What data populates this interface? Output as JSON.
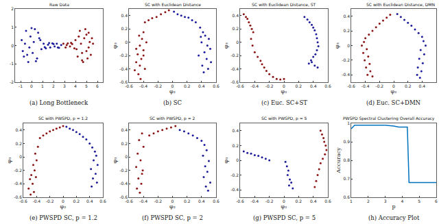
{
  "chart_data": [
    {
      "type": "scatter",
      "title": "Raw Data",
      "caption": "(a) Long Bottleneck",
      "grid": false,
      "xlim": [
        -1.5,
        6.5
      ],
      "ylim": [
        -2,
        2
      ],
      "xticks": [
        -1,
        0,
        1,
        2,
        3,
        4,
        5,
        6
      ],
      "yticks": [
        -2,
        -1,
        0,
        1,
        2
      ],
      "series": [
        {
          "color": "#1c1c9c",
          "x": [
            -0.9,
            -0.7,
            -0.5,
            -0.3,
            -0.1,
            0.1,
            0.3,
            0.5,
            0.7,
            0.9,
            -0.6,
            -0.2,
            0.2,
            0.6,
            -0.8,
            0,
            0.4,
            0.8,
            -0.4,
            1.1,
            1.3,
            1.5,
            1.7,
            1.9,
            2.1,
            2.3,
            2.5,
            2.7,
            1.2,
            1.6,
            2.0,
            2.4
          ],
          "y": [
            0.3,
            -0.6,
            0.8,
            -0.9,
            0.5,
            -0.4,
            0.9,
            -0.7,
            0.4,
            -0.2,
            0.1,
            -0.1,
            0.2,
            0.7,
            -0.3,
            0.95,
            -0.85,
            0.3,
            -0.5,
            0.1,
            -0.15,
            0.05,
            -0.1,
            0.12,
            -0.05,
            0.1,
            -0.12,
            0.03,
            -0.08,
            0.14,
            0.08,
            -0.1
          ]
        },
        {
          "color": "#8c1414",
          "x": [
            2.9,
            3.1,
            3.3,
            3.5,
            3.7,
            3.9,
            3.2,
            3.6,
            4.0,
            4.2,
            4.4,
            4.6,
            4.8,
            5.0,
            5.2,
            5.4,
            5.6,
            4.3,
            4.7,
            5.1,
            5.5,
            4.5,
            4.9,
            5.3,
            4.1,
            5.0,
            4.6,
            5.2
          ],
          "y": [
            0.1,
            -0.1,
            0.12,
            -0.05,
            0.08,
            -0.15,
            0.03,
            0.15,
            0.3,
            -0.6,
            0.8,
            -0.8,
            0.4,
            -0.3,
            0.7,
            -0.5,
            0.1,
            0.5,
            -0.9,
            -0.7,
            0.4,
            0.1,
            0.9,
            0.2,
            -0.2,
            0.6,
            -0.4,
            -0.1
          ]
        }
      ]
    },
    {
      "type": "scatter",
      "title": "SC with Euclidean Distance",
      "caption": "(b) SC",
      "x_label": "φ₂",
      "y_label": "φ₃",
      "grid": false,
      "xlim": [
        -0.6,
        0.6
      ],
      "ylim": [
        -0.6,
        0.5
      ],
      "xticks": [
        -0.6,
        -0.4,
        -0.2,
        0,
        0.2,
        0.4,
        0.6
      ],
      "yticks": [
        -0.6,
        -0.4,
        -0.2,
        0,
        0.2,
        0.4
      ],
      "series": [
        {
          "color": "#8c1414",
          "x": [
            -0.38,
            -0.33,
            -0.28,
            -0.22,
            -0.16,
            -0.1,
            -0.05,
            -0.4,
            -0.42,
            -0.36,
            -0.45,
            -0.4,
            -0.48,
            -0.43,
            -0.5,
            -0.45,
            -0.52,
            -0.4,
            -0.47,
            -0.44,
            -0.38,
            -0.5,
            -0.46
          ],
          "y": [
            0.3,
            0.33,
            0.36,
            0.38,
            0.42,
            0.45,
            0.48,
            0.15,
            0.05,
            0.0,
            -0.05,
            -0.12,
            -0.18,
            -0.25,
            -0.3,
            -0.35,
            -0.42,
            -0.2,
            -0.48,
            -0.55,
            -0.4,
            -0.1,
            0.1
          ]
        },
        {
          "color": "#1c1c9c",
          "x": [
            0.02,
            0.07,
            0.12,
            0.17,
            0.22,
            0.27,
            0.32,
            0.38,
            0.42,
            0.45,
            0.5,
            0.4,
            0.48,
            0.52,
            0.44,
            0.36,
            0.47,
            0.53,
            0.41,
            0.49,
            0.43,
            0.39
          ],
          "y": [
            0.46,
            0.42,
            0.4,
            0.38,
            0.37,
            0.33,
            0.3,
            0.22,
            0.15,
            0.1,
            0.05,
            0.0,
            -0.05,
            -0.1,
            -0.15,
            -0.2,
            -0.25,
            -0.3,
            -0.35,
            -0.4,
            -0.45,
            0.08
          ]
        }
      ]
    },
    {
      "type": "scatter",
      "title": "SC with Euclidean Distance, ST",
      "caption": "(c) Euc. SC+ST",
      "x_label": "φ₂",
      "y_label": "φ₃",
      "grid": false,
      "xlim": [
        -0.6,
        0.6
      ],
      "ylim": [
        -0.6,
        0.5
      ],
      "xticks": [
        -0.6,
        -0.4,
        -0.2,
        0,
        0.2,
        0.4,
        0.6
      ],
      "yticks": [
        -0.6,
        -0.4,
        -0.2,
        0,
        0.2,
        0.4
      ],
      "series": [
        {
          "color": "#8c1414",
          "x": [
            -0.55,
            -0.52,
            -0.5,
            -0.48,
            -0.46,
            -0.44,
            -0.42,
            -0.45,
            -0.43,
            -0.4,
            -0.36,
            -0.32,
            -0.3,
            -0.27,
            -0.24,
            -0.2,
            -0.15,
            -0.1,
            -0.05,
            0.0
          ],
          "y": [
            0.42,
            0.38,
            0.35,
            0.3,
            0.25,
            0.2,
            0.15,
            0.05,
            -0.05,
            -0.15,
            -0.22,
            -0.28,
            -0.33,
            -0.38,
            -0.43,
            -0.48,
            -0.52,
            -0.55,
            -0.56,
            -0.55
          ]
        },
        {
          "color": "#1c1c9c",
          "x": [
            0.28,
            0.32,
            0.35,
            0.38,
            0.4,
            0.42,
            0.44,
            0.45,
            0.46,
            0.47,
            0.45,
            0.43,
            0.4,
            0.37,
            0.34,
            0.38,
            0.42,
            0.46
          ],
          "y": [
            0.38,
            0.34,
            0.3,
            0.26,
            0.22,
            0.18,
            0.12,
            0.06,
            0.0,
            -0.06,
            -0.12,
            -0.18,
            -0.22,
            -0.27,
            -0.32,
            -0.3,
            -0.35,
            -0.38
          ]
        }
      ]
    },
    {
      "type": "scatter",
      "title": "SC with Euclidean Distance, DMN",
      "caption": "(d) Euc. SC+DMN",
      "x_label": "φ₂",
      "y_label": "φ₃",
      "grid": false,
      "xlim": [
        -0.6,
        0.6
      ],
      "ylim": [
        -0.5,
        0.5
      ],
      "xticks": [
        -0.6,
        -0.4,
        -0.2,
        0,
        0.2,
        0.4,
        0.6
      ],
      "yticks": [
        -0.4,
        -0.2,
        0,
        0.2,
        0.4
      ],
      "series": [
        {
          "color": "#8c1414",
          "x": [
            -0.05,
            -0.1,
            -0.15,
            -0.2,
            -0.25,
            -0.3,
            -0.35,
            -0.4,
            -0.42,
            -0.45,
            -0.38,
            -0.43,
            -0.36,
            -0.41,
            -0.34,
            -0.39,
            -0.33,
            -0.37,
            -0.3
          ],
          "y": [
            0.42,
            0.38,
            0.34,
            0.3,
            0.25,
            0.2,
            0.15,
            0.1,
            0.05,
            0.0,
            -0.05,
            -0.1,
            -0.15,
            -0.2,
            -0.25,
            -0.3,
            -0.35,
            -0.4,
            -0.42
          ]
        },
        {
          "color": "#1c1c9c",
          "x": [
            0.05,
            0.1,
            0.15,
            0.2,
            0.25,
            0.3,
            0.35,
            0.4,
            0.42,
            0.45,
            0.38,
            0.43,
            0.36,
            0.41,
            0.34,
            0.39,
            0.33,
            0.37
          ],
          "y": [
            0.43,
            0.39,
            0.35,
            0.31,
            0.27,
            0.22,
            0.17,
            0.12,
            0.06,
            0.0,
            -0.06,
            -0.12,
            -0.18,
            -0.24,
            -0.3,
            -0.35,
            -0.4,
            -0.44
          ]
        }
      ]
    },
    {
      "type": "scatter",
      "title": "SC with PWSPD, p = 1.2",
      "caption": "(e) PWSPD SC, p = 1.2",
      "x_label": "φ₂",
      "y_label": "φ₃",
      "grid": false,
      "xlim": [
        -0.6,
        0.6
      ],
      "ylim": [
        -0.6,
        0.5
      ],
      "xticks": [
        -0.6,
        -0.4,
        -0.2,
        0,
        0.2,
        0.4,
        0.6
      ],
      "yticks": [
        -0.6,
        -0.4,
        -0.2,
        0,
        0.2,
        0.4
      ],
      "series": [
        {
          "color": "#8c1414",
          "x": [
            -0.35,
            -0.3,
            -0.25,
            -0.2,
            -0.15,
            -0.1,
            -0.05,
            0.0,
            -0.38,
            -0.42,
            -0.4,
            -0.45,
            -0.43,
            -0.48,
            -0.5,
            -0.46,
            -0.52,
            -0.44,
            -0.49,
            -0.41
          ],
          "y": [
            0.28,
            0.32,
            0.35,
            0.38,
            0.4,
            0.42,
            0.44,
            0.46,
            0.15,
            0.05,
            -0.05,
            -0.12,
            -0.2,
            -0.27,
            -0.33,
            -0.4,
            -0.47,
            -0.52,
            -0.56,
            -0.3
          ]
        },
        {
          "color": "#1c1c9c",
          "x": [
            0.05,
            0.1,
            0.15,
            0.2,
            0.25,
            0.3,
            0.35,
            0.4,
            0.44,
            0.48,
            0.5,
            0.46,
            0.52,
            0.42,
            0.49,
            0.45,
            0.51,
            0.43
          ],
          "y": [
            0.45,
            0.42,
            0.4,
            0.37,
            0.34,
            0.3,
            0.26,
            0.2,
            0.14,
            0.08,
            0.02,
            -0.05,
            -0.12,
            -0.18,
            -0.25,
            -0.32,
            -0.38,
            -0.44
          ]
        }
      ]
    },
    {
      "type": "scatter",
      "title": "SC with PWSPD, p = 2",
      "caption": "(f) PWSPD SC, p = 2",
      "x_label": "φ₂",
      "y_label": "φ₃",
      "grid": false,
      "xlim": [
        -0.6,
        0.6
      ],
      "ylim": [
        -0.6,
        0.5
      ],
      "xticks": [
        -0.6,
        -0.4,
        -0.2,
        0,
        0.2,
        0.4,
        0.6
      ],
      "yticks": [
        -0.6,
        -0.4,
        -0.2,
        0,
        0.2,
        0.4
      ],
      "series": [
        {
          "color": "#8c1414",
          "x": [
            -0.32,
            -0.26,
            -0.2,
            -0.14,
            -0.08,
            -0.02,
            0.04,
            -0.42,
            -0.46,
            -0.4,
            -0.48,
            -0.44,
            -0.5,
            -0.42,
            -0.47,
            -0.43,
            -0.49,
            -0.45,
            -0.41
          ],
          "y": [
            0.32,
            0.35,
            0.38,
            0.4,
            0.42,
            0.44,
            0.46,
            0.35,
            0.25,
            0.15,
            0.05,
            -0.05,
            -0.15,
            -0.25,
            -0.32,
            -0.4,
            -0.47,
            -0.53,
            -0.2
          ]
        },
        {
          "color": "#1c1c9c",
          "x": [
            0.1,
            0.16,
            0.22,
            0.28,
            0.34,
            0.4,
            0.44,
            0.47,
            0.42,
            0.5,
            0.45,
            0.48,
            0.43,
            0.52,
            0.46,
            0.49
          ],
          "y": [
            0.4,
            0.38,
            0.35,
            0.32,
            0.28,
            0.24,
            0.18,
            0.1,
            0.02,
            -0.06,
            -0.14,
            -0.22,
            -0.3,
            -0.38,
            -0.44,
            -0.5
          ]
        }
      ]
    },
    {
      "type": "scatter",
      "title": "SC with PWSPD, p = 5",
      "caption": "(g) PWSPD SC, p = 5",
      "x_label": "φ₂",
      "y_label": "φ₃",
      "grid": false,
      "xlim": [
        -0.6,
        0.6
      ],
      "ylim": [
        -0.5,
        0.5
      ],
      "xticks": [
        -0.6,
        -0.4,
        -0.2,
        0,
        0.2,
        0.4,
        0.6
      ],
      "yticks": [
        -0.4,
        -0.2,
        0,
        0.2,
        0.4
      ],
      "series": [
        {
          "color": "#1c1c9c",
          "x": [
            -0.55,
            -0.5,
            -0.45,
            -0.4,
            -0.35,
            -0.3,
            -0.25,
            -0.2,
            0.02,
            0.04,
            0.06,
            0.05,
            0.08,
            0.1,
            0.07,
            0.12
          ],
          "y": [
            0.12,
            0.1,
            0.09,
            0.07,
            0.06,
            0.04,
            0.02,
            0.0,
            -0.02,
            -0.08,
            -0.14,
            -0.2,
            -0.26,
            -0.3,
            -0.34,
            -0.38
          ]
        },
        {
          "color": "#8c1414",
          "x": [
            0.5,
            0.52,
            0.54,
            0.55,
            0.57,
            0.58,
            0.56,
            0.53,
            0.5,
            0.48,
            0.46,
            0.44,
            0.42
          ],
          "y": [
            0.4,
            0.35,
            0.3,
            0.25,
            0.2,
            0.14,
            0.08,
            0.02,
            -0.04,
            -0.12,
            -0.2,
            -0.28,
            -0.36
          ]
        }
      ]
    },
    {
      "type": "line",
      "title": "PWSPD Spectral Clustering Overall Accuracy",
      "caption": "(h) Accuracy Plot",
      "x_label": "p",
      "y_label": "Accuracy",
      "grid": false,
      "xlim": [
        1,
        6
      ],
      "ylim": [
        0.6,
        1
      ],
      "xticks": [
        1,
        2,
        3,
        4,
        5,
        6
      ],
      "yticks": [
        0.6,
        0.7,
        0.8,
        0.9,
        1
      ],
      "series": [
        {
          "color": "#0072bd",
          "x": [
            1,
            1.2,
            1.5,
            2,
            2.5,
            3,
            3.5,
            3.8,
            4.1,
            4.3,
            4.4,
            4.5,
            5,
            5.5,
            6
          ],
          "y": [
            0.97,
            0.99,
            0.99,
            0.99,
            0.99,
            0.99,
            0.985,
            0.98,
            0.98,
            0.98,
            0.68,
            0.68,
            0.68,
            0.68,
            0.68
          ]
        }
      ]
    }
  ]
}
